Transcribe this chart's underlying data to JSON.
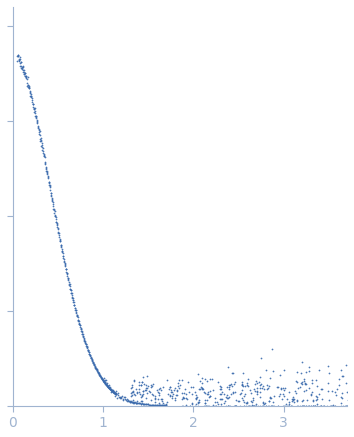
{
  "title": "",
  "xlabel": "",
  "ylabel": "",
  "xlim": [
    0,
    3.7
  ],
  "ylim": [
    0,
    1.05
  ],
  "dot_color": "#3a6aad",
  "dot_size": 2.5,
  "bg_color": "#ffffff",
  "axis_color": "#a0b4d0",
  "tick_color": "#a0b4d0",
  "label_color": "#a0b4d0",
  "xticks": [
    0,
    1,
    2,
    3
  ],
  "figsize": [
    3.54,
    4.37
  ],
  "dpi": 100
}
